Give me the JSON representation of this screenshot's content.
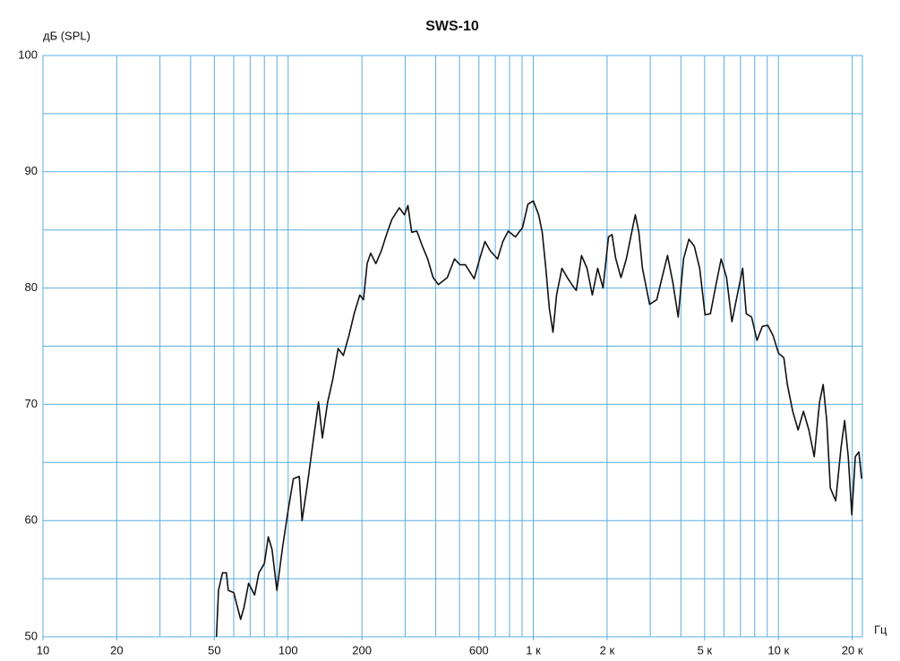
{
  "chart_data": {
    "type": "line",
    "title": "SWS-10",
    "y_label": "дБ (SPL)",
    "x_label": "Гц",
    "xscale": "log",
    "xlim": [
      10,
      22000
    ],
    "ylim": [
      50,
      100
    ],
    "xticks": [
      10,
      20,
      50,
      100,
      200,
      600,
      {
        "value": 1000,
        "label": "1 к"
      },
      {
        "value": 2000,
        "label": "2 к"
      },
      {
        "value": 5000,
        "label": "5 к"
      },
      {
        "value": 10000,
        "label": "10 к"
      },
      {
        "value": 20000,
        "label": "20 к"
      }
    ],
    "yticks": [
      50,
      60,
      70,
      80,
      90,
      100
    ],
    "xgrid": [
      20,
      30,
      40,
      50,
      60,
      70,
      80,
      90,
      100,
      200,
      300,
      400,
      500,
      600,
      700,
      800,
      900,
      1000,
      2000,
      3000,
      4000,
      5000,
      6000,
      7000,
      8000,
      9000,
      10000,
      20000
    ],
    "ygrid_minor": [
      55,
      65,
      75,
      85,
      95
    ],
    "grid": true,
    "grid_color": "#5aaee0",
    "series": [
      {
        "name": "SWS-10",
        "color": "#111111",
        "x": [
          51,
          52,
          54,
          56,
          57,
          60,
          64,
          66,
          69,
          73,
          76,
          80,
          83,
          86,
          90,
          95,
          100,
          105,
          111,
          114,
          120,
          127,
          133,
          138,
          145,
          152,
          160,
          168,
          177,
          186,
          196,
          203,
          210,
          217,
          228,
          240,
          252,
          265,
          284,
          298,
          308,
          319,
          335,
          353,
          371,
          390,
          410,
          446,
          477,
          502,
          528,
          574,
          604,
          635,
          668,
          715,
          751,
          790,
          845,
          904,
          951,
          1000,
          1052,
          1088,
          1125,
          1163,
          1203,
          1244,
          1309,
          1376,
          1447,
          1497,
          1574,
          1656,
          1741,
          1831,
          1926,
          2026,
          2095,
          2167,
          2279,
          2397,
          2520,
          2607,
          2696,
          2788,
          2982,
          3189,
          3353,
          3527,
          3709,
          3901,
          4103,
          4315,
          4538,
          4773,
          5020,
          5279,
          5552,
          5840,
          6142,
          6459,
          6794,
          7145,
          7389,
          7771,
          8173,
          8596,
          9040,
          9508,
          10000,
          10517,
          10876,
          11438,
          12031,
          12653,
          13308,
          13996,
          14721,
          15221,
          15740,
          16278,
          17120,
          18005,
          18620,
          19256,
          19913,
          20593,
          21296,
          21837
        ],
        "values": [
          50,
          54.0,
          55.5,
          55.5,
          54.0,
          53.8,
          51.5,
          52.5,
          54.6,
          53.6,
          55.5,
          56.3,
          58.6,
          57.5,
          54.0,
          57.8,
          60.9,
          63.6,
          63.8,
          60.0,
          63.2,
          67.1,
          70.2,
          67.1,
          70.2,
          72.1,
          74.8,
          74.2,
          75.9,
          77.8,
          79.4,
          79.0,
          82.1,
          83.0,
          82.1,
          83.2,
          84.6,
          85.9,
          86.9,
          86.3,
          87.1,
          84.8,
          84.9,
          83.6,
          82.5,
          80.9,
          80.3,
          80.9,
          82.5,
          82.0,
          82.0,
          80.8,
          82.5,
          84.0,
          83.2,
          82.5,
          84.0,
          84.9,
          84.4,
          85.2,
          87.2,
          87.5,
          86.3,
          84.8,
          81.7,
          78.2,
          76.2,
          79.4,
          81.7,
          80.9,
          80.2,
          79.8,
          82.8,
          81.7,
          79.4,
          81.7,
          80.0,
          84.4,
          84.6,
          82.6,
          80.9,
          82.5,
          84.8,
          86.3,
          84.8,
          81.7,
          78.6,
          79.0,
          80.9,
          82.8,
          80.5,
          77.5,
          82.5,
          84.2,
          83.6,
          81.7,
          77.7,
          77.8,
          80.2,
          82.5,
          80.9,
          77.1,
          79.4,
          81.7,
          77.8,
          77.5,
          75.5,
          76.7,
          76.8,
          75.9,
          74.4,
          74.0,
          71.7,
          69.4,
          67.8,
          69.4,
          67.8,
          65.5,
          70.2,
          71.7,
          68.6,
          62.8,
          61.7,
          66.3,
          68.6,
          65.5,
          60.5,
          65.5,
          65.9,
          63.6
        ]
      }
    ]
  }
}
